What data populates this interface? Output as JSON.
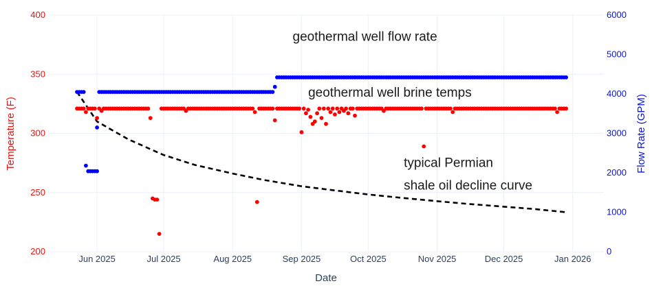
{
  "chart_data": {
    "type": "scatter",
    "title": "",
    "xlabel": "Date",
    "ylabel_left": "Temperature (F)",
    "ylabel_right": "Flow Rate (GPM)",
    "x_range": [
      "2025-05-10",
      "2026-01-15"
    ],
    "ylim_left": [
      200,
      400
    ],
    "ylim_right": [
      0,
      6000
    ],
    "y_ticks_left": [
      "200",
      "250",
      "300",
      "350",
      "400"
    ],
    "y_ticks_right": [
      "0",
      "1000",
      "2000",
      "3000",
      "4000",
      "5000",
      "6000"
    ],
    "x_ticks": [
      {
        "date": "2025-06-01",
        "label": "Jun 2025"
      },
      {
        "date": "2025-07-01",
        "label": "Jul 2025"
      },
      {
        "date": "2025-08-01",
        "label": "Aug 2025"
      },
      {
        "date": "2025-09-01",
        "label": "Sep 2025"
      },
      {
        "date": "2025-10-01",
        "label": "Oct 2025"
      },
      {
        "date": "2025-11-01",
        "label": "Nov 2025"
      },
      {
        "date": "2025-12-01",
        "label": "Dec 2025"
      },
      {
        "date": "2026-01-01",
        "label": "Jan 2026"
      }
    ],
    "colors": {
      "temperature": "#ff0000",
      "flow": "#0000ff",
      "decline": "#000000",
      "grid": "#ebf0f8"
    },
    "series": [
      {
        "name": "geothermal well brine temps",
        "axis": "left",
        "base": {
          "start": "2025-05-23",
          "end": "2025-12-29",
          "value": 321
        },
        "outliers": [
          [
            "2025-05-27",
            318
          ],
          [
            "2025-06-01",
            313
          ],
          [
            "2025-06-03",
            319
          ],
          [
            "2025-06-25",
            313
          ],
          [
            "2025-06-26",
            245
          ],
          [
            "2025-06-27",
            244
          ],
          [
            "2025-06-28",
            244
          ],
          [
            "2025-06-29",
            215
          ],
          [
            "2025-07-11",
            319
          ],
          [
            "2025-08-11",
            318
          ],
          [
            "2025-08-12",
            242
          ],
          [
            "2025-08-20",
            311
          ],
          [
            "2025-09-01",
            301
          ],
          [
            "2025-09-03",
            317
          ],
          [
            "2025-09-04",
            320
          ],
          [
            "2025-09-05",
            314
          ],
          [
            "2025-09-06",
            308
          ],
          [
            "2025-09-07",
            310
          ],
          [
            "2025-09-08",
            317
          ],
          [
            "2025-09-10",
            313
          ],
          [
            "2025-09-12",
            308
          ],
          [
            "2025-09-14",
            318
          ],
          [
            "2025-09-16",
            316
          ],
          [
            "2025-09-18",
            318
          ],
          [
            "2025-09-20",
            319
          ],
          [
            "2025-09-22",
            317
          ],
          [
            "2025-09-25",
            315
          ],
          [
            "2025-10-08",
            319
          ],
          [
            "2025-10-26",
            289
          ],
          [
            "2025-11-08",
            318
          ],
          [
            "2025-12-25",
            318
          ]
        ]
      },
      {
        "name": "geothermal well flow rate",
        "axis": "right",
        "segments": [
          {
            "start": "2025-05-23",
            "end": "2025-05-26",
            "value": 4050
          },
          {
            "start": "2025-05-27",
            "end": "2025-05-27",
            "value": 2180
          },
          {
            "start": "2025-05-28",
            "end": "2025-06-01",
            "value": 2040
          },
          {
            "start": "2025-06-01",
            "end": "2025-06-01",
            "value": 3150
          },
          {
            "start": "2025-06-02",
            "end": "2025-08-19",
            "value": 4050
          },
          {
            "start": "2025-08-20",
            "end": "2025-08-20",
            "value": 4180
          },
          {
            "start": "2025-08-21",
            "end": "2025-12-29",
            "value": 4420
          }
        ]
      },
      {
        "name": "typical Permian shale oil decline curve",
        "axis": "right",
        "style": "dashed",
        "points": [
          [
            "2025-05-23",
            4050
          ],
          [
            "2025-06-01",
            3300
          ],
          [
            "2025-06-15",
            2850
          ],
          [
            "2025-07-01",
            2450
          ],
          [
            "2025-07-15",
            2200
          ],
          [
            "2025-08-01",
            1980
          ],
          [
            "2025-08-15",
            1820
          ],
          [
            "2025-09-01",
            1660
          ],
          [
            "2025-09-15",
            1560
          ],
          [
            "2025-10-01",
            1450
          ],
          [
            "2025-10-15",
            1370
          ],
          [
            "2025-11-01",
            1280
          ],
          [
            "2025-11-15",
            1210
          ],
          [
            "2025-12-01",
            1140
          ],
          [
            "2025-12-15",
            1080
          ],
          [
            "2025-12-29",
            1000
          ]
        ]
      }
    ],
    "annotations": [
      {
        "text": "geothermal well flow rate",
        "date": "2025-08-28",
        "value_right": 5350
      },
      {
        "text": "geothermal well brine temps",
        "date": "2025-09-04",
        "value_right": 3930
      },
      {
        "text": "typical Permian",
        "date": "2025-10-17",
        "value_right": 2150
      },
      {
        "text": "shale oil decline curve",
        "date": "2025-10-17",
        "value_right": 1570
      }
    ]
  }
}
